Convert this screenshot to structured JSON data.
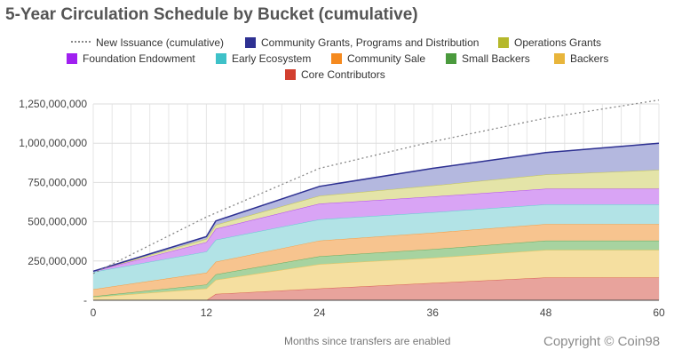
{
  "title": "5-Year Circulation Schedule by Bucket (cumulative)",
  "legend": [
    {
      "label": "New Issuance (cumulative)",
      "color": "#999999",
      "style": "dotted"
    },
    {
      "label": "Community Grants, Programs and Distribution",
      "color": "#2e3192",
      "style": "box"
    },
    {
      "label": "Operations Grants",
      "color": "#b5b82b",
      "style": "box"
    },
    {
      "label": "Foundation Endowment",
      "color": "#a020f0",
      "style": "box"
    },
    {
      "label": "Early Ecosystem",
      "color": "#3ec1c8",
      "style": "box"
    },
    {
      "label": "Community Sale",
      "color": "#f58a1f",
      "style": "box"
    },
    {
      "label": "Small Backers",
      "color": "#4a9a3d",
      "style": "box"
    },
    {
      "label": "Backers",
      "color": "#e8b53b",
      "style": "box"
    },
    {
      "label": "Core Contributors",
      "color": "#d23f2f",
      "style": "box"
    }
  ],
  "xlabel": "Months since transfers are enabled",
  "copyright": "Copyright © Coin98",
  "chart_data": {
    "type": "area",
    "stacked": true,
    "title": "5-Year Circulation Schedule by Bucket (cumulative)",
    "xlabel": "Months since transfers are enabled",
    "ylabel": "",
    "x": [
      0,
      12,
      13,
      24,
      36,
      48,
      60
    ],
    "xticks": [
      0,
      12,
      24,
      36,
      48,
      60
    ],
    "ylim": [
      0,
      1250000000
    ],
    "yticks": [
      0,
      250000000,
      500000000,
      750000000,
      1000000000,
      1250000000
    ],
    "ytick_labels": [
      "-",
      "250,000,000",
      "500,000,000",
      "750,000,000",
      "1,000,000,000",
      "1,250,000,000"
    ],
    "grid": true,
    "series": [
      {
        "name": "Core Contributors",
        "color": "#e8a39c",
        "values": [
          0,
          0,
          40000000,
          75000000,
          110000000,
          145000000,
          145000000
        ]
      },
      {
        "name": "Backers",
        "color": "#f5dfa0",
        "values": [
          20000000,
          75000000,
          90000000,
          155000000,
          160000000,
          175000000,
          175000000
        ]
      },
      {
        "name": "Small Backers",
        "color": "#a7d3a0",
        "values": [
          5000000,
          25000000,
          35000000,
          50000000,
          55000000,
          60000000,
          60000000
        ]
      },
      {
        "name": "Community Sale",
        "color": "#f7c48f",
        "values": [
          45000000,
          75000000,
          80000000,
          100000000,
          105000000,
          105000000,
          105000000
        ]
      },
      {
        "name": "Early Ecosystem",
        "color": "#b2e3e6",
        "values": [
          110000000,
          135000000,
          140000000,
          135000000,
          130000000,
          125000000,
          125000000
        ]
      },
      {
        "name": "Foundation Endowment",
        "color": "#d9a4f5",
        "values": [
          5000000,
          60000000,
          70000000,
          100000000,
          100000000,
          100000000,
          100000000
        ]
      },
      {
        "name": "Operations Grants",
        "color": "#e4e4a8",
        "values": [
          0,
          20000000,
          25000000,
          50000000,
          70000000,
          90000000,
          120000000
        ]
      },
      {
        "name": "Community Grants, Programs and Distribution",
        "color": "#b4b8df",
        "values": [
          0,
          15000000,
          25000000,
          60000000,
          110000000,
          140000000,
          170000000
        ]
      }
    ],
    "top_line_color": "#2e3192",
    "issuance": {
      "name": "New Issuance (cumulative)",
      "x": [
        0,
        12,
        24,
        36,
        48,
        60
      ],
      "values": [
        170000000,
        530000000,
        840000000,
        1010000000,
        1160000000,
        1275000000
      ]
    }
  }
}
